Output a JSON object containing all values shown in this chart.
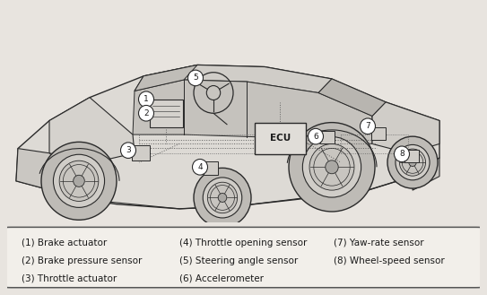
{
  "legend_items_col1": [
    "(1) Brake actuator",
    "(2) Brake pressure sensor",
    "(3) Throttle actuator"
  ],
  "legend_items_col2": [
    "(4) Throttle opening sensor",
    "(5) Steering angle sensor",
    "(6) Accelerometer"
  ],
  "legend_items_col3": [
    "(7) Yaw-rate sensor",
    "(8) Wheel-speed sensor"
  ],
  "bg_color": "#e8e4df",
  "text_color": "#1a1a1a",
  "font_size": 7.5,
  "fig_width": 5.43,
  "fig_height": 3.29,
  "dpi": 100,
  "outline_color": "#2a2a2a",
  "car_fill": "#dddad5",
  "wheel_fill": "#c8c5c0",
  "legend_fill": "#f2efea"
}
